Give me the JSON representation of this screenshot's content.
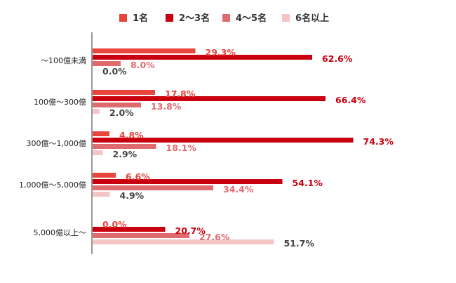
{
  "chart_data": {
    "type": "bar",
    "orientation": "horizontal",
    "title": "",
    "xlabel": "",
    "ylabel": "",
    "xlim": [
      0,
      100
    ],
    "grid": false,
    "legend_position": "top",
    "categories": [
      "～100億未満",
      "100億～300億",
      "300億～1,000億",
      "1,000億～5,000億",
      "5,000億以上～"
    ],
    "series": [
      {
        "name": "1名",
        "color": "#e8453c",
        "label_color": "#e8453c",
        "values": [
          29.3,
          17.8,
          4.8,
          6.6,
          0.0
        ]
      },
      {
        "name": "2～3名",
        "color": "#c8000f",
        "label_color": "#c8000f",
        "values": [
          62.6,
          66.4,
          74.3,
          54.1,
          20.7
        ]
      },
      {
        "name": "4～5名",
        "color": "#e06b6f",
        "label_color": "#e06b6f",
        "values": [
          8.0,
          13.8,
          18.1,
          34.4,
          27.6
        ]
      },
      {
        "name": "6名以上",
        "color": "#f3c5c5",
        "label_color": "#444444",
        "values": [
          0.0,
          2.0,
          2.9,
          4.9,
          51.7
        ]
      }
    ],
    "value_labels": [
      [
        "29.3%",
        "17.8%",
        "4.8%",
        "6.6%",
        "0.0%"
      ],
      [
        "62.6%",
        "66.4%",
        "74.3%",
        "54.1%",
        "20.7%"
      ],
      [
        "8.0%",
        "13.8%",
        "18.1%",
        "34.4%",
        "27.6%"
      ],
      [
        "0.0%",
        "2.0%",
        "2.9%",
        "4.9%",
        "51.7%"
      ]
    ]
  }
}
